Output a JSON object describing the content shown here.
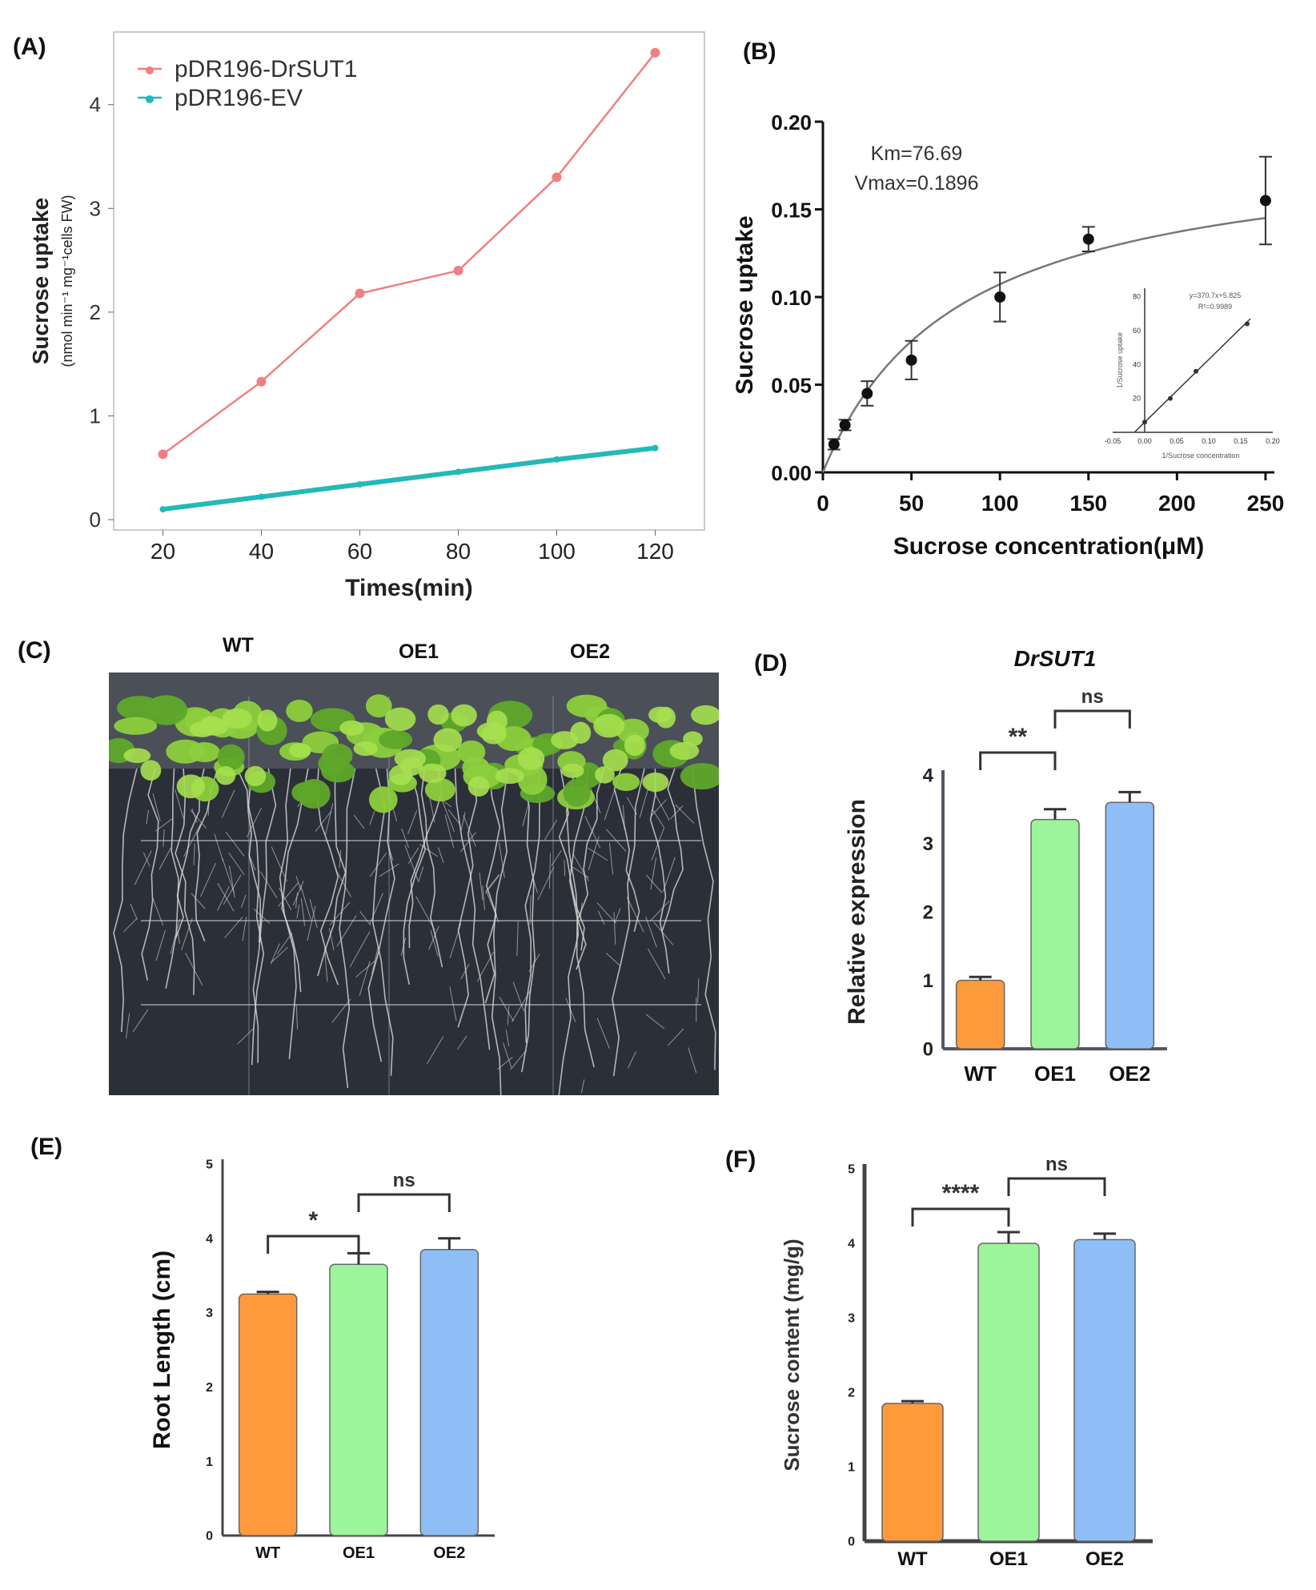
{
  "panel_labels": [
    "(A)",
    "(B)",
    "(C)",
    "(D)",
    "(E)",
    "(F)"
  ],
  "photo": {
    "labels": [
      "WT",
      "OE1",
      "OE2"
    ],
    "colors": {
      "background": "#2b2f38",
      "leaf": "#8ccf3c",
      "leaf_dark": "#5fa82a",
      "root": "#d9d9d9",
      "grid": "#b8bcc4"
    }
  },
  "chart_data": [
    {
      "id": "A",
      "type": "line",
      "title": "",
      "xlabel": "Times(min)",
      "ylabel": "Sucrose uptake",
      "ylabel_sub": "(nmol min⁻¹ mg⁻¹cells FW)",
      "xlim": [
        10,
        130
      ],
      "ylim": [
        -0.1,
        4.7
      ],
      "xticks": [
        20,
        40,
        60,
        80,
        100,
        120
      ],
      "yticks": [
        0,
        1,
        2,
        3,
        4
      ],
      "x": [
        20,
        40,
        60,
        80,
        100,
        120
      ],
      "series": [
        {
          "name": "pDR196-DrSUT1",
          "color": "#f07f7f",
          "values": [
            0.63,
            1.33,
            2.18,
            2.4,
            3.3,
            4.5
          ]
        },
        {
          "name": "pDR196-EV",
          "color": "#23b9b9",
          "values": [
            0.1,
            0.22,
            0.34,
            0.46,
            0.58,
            0.69
          ]
        }
      ],
      "legend": "top-left"
    },
    {
      "id": "B",
      "type": "scatter",
      "xlabel": "Sucrose concentration(μM)",
      "ylabel": "Sucrose uptake",
      "xlim": [
        0,
        255
      ],
      "ylim": [
        0,
        0.2
      ],
      "xticks": [
        0,
        50,
        100,
        150,
        200,
        250
      ],
      "yticks": [
        "0.00",
        "0.05",
        "0.10",
        "0.15",
        "0.20"
      ],
      "x": [
        6.25,
        12.5,
        25,
        50,
        100,
        150,
        250
      ],
      "y": [
        0.016,
        0.027,
        0.045,
        0.064,
        0.1,
        0.133,
        0.155
      ],
      "err": [
        0.003,
        0.003,
        0.007,
        0.011,
        0.014,
        0.007,
        0.025
      ],
      "fit": {
        "km": 76.69,
        "vmax": 0.1896
      },
      "annotations": [
        "Km=76.69",
        "Vmax=0.1896"
      ],
      "inset": {
        "xticks": [
          "-0.05",
          "0.00",
          "0.05",
          "0.10",
          "0.15",
          "0.20"
        ],
        "yticks": [
          "20",
          "40",
          "60",
          "80"
        ],
        "xlabel": "1/Sucrose concentration",
        "ylabel": "1/Sucrose uptake",
        "equation": "y=370.7x+5.825",
        "r2": "R²=0.9989",
        "x": [
          0.0,
          0.04,
          0.08,
          0.16
        ],
        "y": [
          6,
          20,
          36,
          64
        ]
      }
    },
    {
      "id": "D",
      "type": "bar",
      "title": "DrSUT1",
      "ylabel": "Relative expression",
      "categories": [
        "WT",
        "OE1",
        "OE2"
      ],
      "values": [
        1.0,
        3.35,
        3.6
      ],
      "err": [
        0.05,
        0.15,
        0.15
      ],
      "colors": [
        "#ff9a3c",
        "#9df59b",
        "#8fbdf5"
      ],
      "ylim": [
        0,
        4
      ],
      "yticks": [
        0,
        1,
        2,
        3,
        4
      ],
      "significance": [
        {
          "from": "WT",
          "to": "OE1",
          "label": "**"
        },
        {
          "from": "OE1",
          "to": "OE2",
          "label": "ns"
        }
      ]
    },
    {
      "id": "E",
      "type": "bar",
      "ylabel": "Root Length (cm)",
      "categories": [
        "WT",
        "OE1",
        "OE2"
      ],
      "values": [
        3.25,
        3.65,
        3.85
      ],
      "err": [
        0.03,
        0.15,
        0.15
      ],
      "colors": [
        "#ff9a3c",
        "#9df59b",
        "#8fbdf5"
      ],
      "ylim": [
        0,
        5
      ],
      "yticks": [
        0,
        1,
        2,
        3,
        4,
        5
      ],
      "significance": [
        {
          "from": "WT",
          "to": "OE1",
          "label": "*"
        },
        {
          "from": "OE1",
          "to": "OE2",
          "label": "ns"
        }
      ]
    },
    {
      "id": "F",
      "type": "bar",
      "ylabel": "Sucrose content (mg/g)",
      "categories": [
        "WT",
        "OE1",
        "OE2"
      ],
      "values": [
        1.85,
        4.0,
        4.05
      ],
      "err": [
        0.03,
        0.15,
        0.08
      ],
      "colors": [
        "#ff9a3c",
        "#9df59b",
        "#8fbdf5"
      ],
      "ylim": [
        0,
        5
      ],
      "yticks": [
        0,
        1,
        2,
        3,
        4,
        5
      ],
      "significance": [
        {
          "from": "WT",
          "to": "OE1",
          "label": "****"
        },
        {
          "from": "OE1",
          "to": "OE2",
          "label": "ns"
        }
      ]
    }
  ]
}
